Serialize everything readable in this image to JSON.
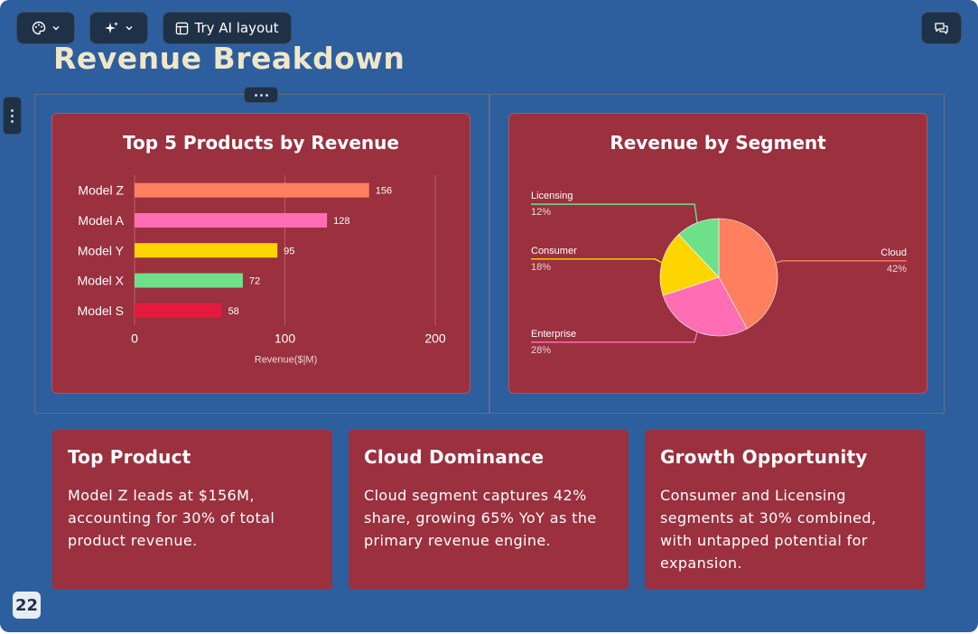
{
  "toolbar": {
    "theme_icon": "palette-icon",
    "ai_icon": "sparkles-icon",
    "layout_label": "Try AI layout",
    "comments_icon": "comments-icon"
  },
  "slide": {
    "title": "Revenue Breakdown",
    "page_number": "22"
  },
  "chart_data": [
    {
      "type": "bar",
      "orientation": "horizontal",
      "title": "Top 5 Products by Revenue",
      "categories": [
        "Model Z",
        "Model A",
        "Model Y",
        "Model X",
        "Model S"
      ],
      "values": [
        156,
        128,
        95,
        72,
        58
      ],
      "colors": [
        "#ff7f5e",
        "#ff6eb4",
        "#ffd500",
        "#6ee08a",
        "#e5193d"
      ],
      "xlabel": "Revenue($|M)",
      "ylabel": "",
      "xlim": [
        0,
        200
      ],
      "xticks": [
        0,
        100,
        200
      ],
      "grid": true
    },
    {
      "type": "pie",
      "title": "Revenue by Segment",
      "slices": [
        {
          "label": "Cloud",
          "pct_label": "42%",
          "value": 42,
          "color": "#ff7f5e"
        },
        {
          "label": "Enterprise",
          "pct_label": "28%",
          "value": 28,
          "color": "#ff6eb4"
        },
        {
          "label": "Consumer",
          "pct_label": "18%",
          "value": 18,
          "color": "#ffd500"
        },
        {
          "label": "Licensing",
          "pct_label": "12%",
          "value": 12,
          "color": "#6ee08a"
        }
      ]
    }
  ],
  "insights": [
    {
      "title": "Top Product",
      "body": "Model Z leads at $156M, accounting for 30% of total product revenue."
    },
    {
      "title": "Cloud Dominance",
      "body": "Cloud segment captures 42% share, growing 65% YoY as the primary revenue engine."
    },
    {
      "title": "Growth Opportunity",
      "body": "Consumer and Licensing segments at 30% combined, with untapped potential for expansion."
    }
  ]
}
